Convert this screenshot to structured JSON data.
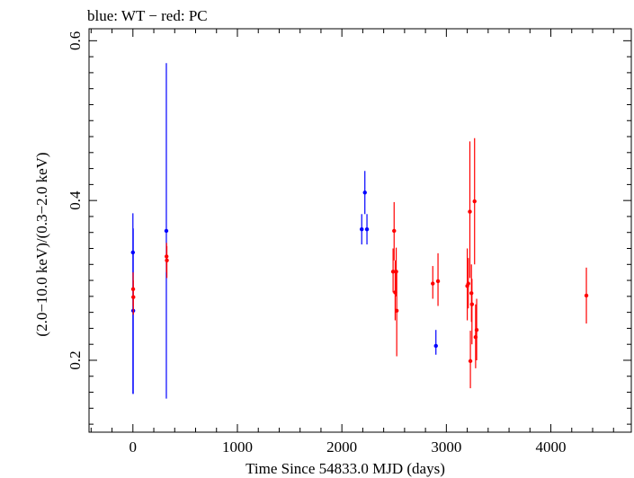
{
  "header": {
    "title": "blue: WT − red: PC"
  },
  "chart_data": {
    "type": "scatter",
    "title": "blue: WT − red: PC",
    "xlabel": "Time Since 54833.0 MJD (days)",
    "ylabel": "(2.0−10.0 keV)/(0.3−2.0 keV)",
    "xlim": [
      -420,
      4770
    ],
    "ylim": [
      0.11,
      0.615
    ],
    "xticks": [
      0,
      1000,
      2000,
      3000,
      4000
    ],
    "xtick_labels": [
      "0",
      "1000",
      "2000",
      "3000",
      "4000"
    ],
    "yticks": [
      0.2,
      0.4,
      0.6
    ],
    "ytick_labels": [
      "0.2",
      "0.4",
      "0.6"
    ],
    "grid": false,
    "series": [
      {
        "name": "WT",
        "color": "#0000ff",
        "points": [
          {
            "x": 0,
            "y": 0.335,
            "lo": 0.158,
            "hi": 0.384
          },
          {
            "x": 3,
            "y": 0.262,
            "lo": 0.158,
            "hi": 0.365
          },
          {
            "x": 320,
            "y": 0.362,
            "lo": 0.152,
            "hi": 0.572
          },
          {
            "x": 2190,
            "y": 0.364,
            "lo": 0.345,
            "hi": 0.383
          },
          {
            "x": 2220,
            "y": 0.41,
            "lo": 0.383,
            "hi": 0.437
          },
          {
            "x": 2240,
            "y": 0.364,
            "lo": 0.345,
            "hi": 0.383
          },
          {
            "x": 2900,
            "y": 0.218,
            "lo": 0.207,
            "hi": 0.238
          }
        ]
      },
      {
        "name": "PC",
        "color": "#ff0000",
        "points": [
          {
            "x": 2,
            "y": 0.289,
            "lo": 0.268,
            "hi": 0.31
          },
          {
            "x": 4,
            "y": 0.279,
            "lo": 0.257,
            "hi": 0.3
          },
          {
            "x": 322,
            "y": 0.33,
            "lo": 0.31,
            "hi": 0.347
          },
          {
            "x": 325,
            "y": 0.325,
            "lo": 0.303,
            "hi": 0.343
          },
          {
            "x": 2490,
            "y": 0.311,
            "lo": 0.285,
            "hi": 0.34
          },
          {
            "x": 2500,
            "y": 0.362,
            "lo": 0.325,
            "hi": 0.398
          },
          {
            "x": 2510,
            "y": 0.285,
            "lo": 0.25,
            "hi": 0.325
          },
          {
            "x": 2520,
            "y": 0.311,
            "lo": 0.28,
            "hi": 0.341
          },
          {
            "x": 2525,
            "y": 0.262,
            "lo": 0.205,
            "hi": 0.312
          },
          {
            "x": 2870,
            "y": 0.296,
            "lo": 0.277,
            "hi": 0.318
          },
          {
            "x": 2920,
            "y": 0.299,
            "lo": 0.268,
            "hi": 0.334
          },
          {
            "x": 3200,
            "y": 0.293,
            "lo": 0.25,
            "hi": 0.34
          },
          {
            "x": 3210,
            "y": 0.296,
            "lo": 0.265,
            "hi": 0.328
          },
          {
            "x": 3225,
            "y": 0.386,
            "lo": 0.303,
            "hi": 0.474
          },
          {
            "x": 3230,
            "y": 0.199,
            "lo": 0.165,
            "hi": 0.237
          },
          {
            "x": 3240,
            "y": 0.284,
            "lo": 0.248,
            "hi": 0.32
          },
          {
            "x": 3245,
            "y": 0.27,
            "lo": 0.22,
            "hi": 0.302
          },
          {
            "x": 3270,
            "y": 0.399,
            "lo": 0.32,
            "hi": 0.478
          },
          {
            "x": 3280,
            "y": 0.229,
            "lo": 0.19,
            "hi": 0.27
          },
          {
            "x": 3290,
            "y": 0.238,
            "lo": 0.2,
            "hi": 0.277
          },
          {
            "x": 4340,
            "y": 0.281,
            "lo": 0.246,
            "hi": 0.316
          }
        ]
      }
    ]
  }
}
